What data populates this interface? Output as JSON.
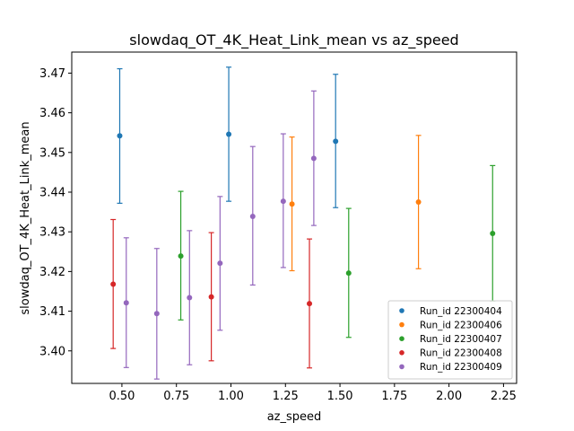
{
  "chart_data": {
    "type": "scatter",
    "title": "slowdaq_OT_4K_Heat_Link_mean vs az_speed",
    "xlabel": "az_speed",
    "ylabel": "slowdaq_OT_4K_Heat_Link_mean",
    "xlim": [
      0.27,
      2.31
    ],
    "ylim": [
      3.3918,
      3.4753
    ],
    "xticks": [
      0.5,
      0.75,
      1.0,
      1.25,
      1.5,
      1.75,
      2.0,
      2.25
    ],
    "xtick_labels": [
      "0.50",
      "0.75",
      "1.00",
      "1.25",
      "1.50",
      "1.75",
      "2.00",
      "2.25"
    ],
    "yticks": [
      3.4,
      3.41,
      3.42,
      3.43,
      3.44,
      3.45,
      3.46,
      3.47
    ],
    "ytick_labels": [
      "3.40",
      "3.41",
      "3.42",
      "3.43",
      "3.44",
      "3.45",
      "3.46",
      "3.47"
    ],
    "grid": false,
    "error_bars": true,
    "legend_position": "lower-right",
    "series": [
      {
        "name": "Run_id 22300404",
        "color": "#1f77b4",
        "points": [
          {
            "x": 0.49,
            "y": 3.4542,
            "ylow": 3.4372,
            "yhigh": 3.4711
          },
          {
            "x": 0.99,
            "y": 3.4546,
            "ylow": 3.4377,
            "yhigh": 3.4715
          },
          {
            "x": 1.48,
            "y": 3.4528,
            "ylow": 3.4361,
            "yhigh": 3.4697
          }
        ]
      },
      {
        "name": "Run_id 22300406",
        "color": "#ff7f0e",
        "points": [
          {
            "x": 1.28,
            "y": 3.437,
            "ylow": 3.4202,
            "yhigh": 3.4539
          },
          {
            "x": 1.86,
            "y": 3.4375,
            "ylow": 3.4207,
            "yhigh": 3.4543
          }
        ]
      },
      {
        "name": "Run_id 22300407",
        "color": "#2ca02c",
        "points": [
          {
            "x": 0.77,
            "y": 3.4239,
            "ylow": 3.4078,
            "yhigh": 3.4402
          },
          {
            "x": 1.54,
            "y": 3.4196,
            "ylow": 3.4034,
            "yhigh": 3.4359
          },
          {
            "x": 2.2,
            "y": 3.4296,
            "ylow": 3.4125,
            "yhigh": 3.4467
          }
        ]
      },
      {
        "name": "Run_id 22300408",
        "color": "#d62728",
        "points": [
          {
            "x": 0.46,
            "y": 3.4168,
            "ylow": 3.4006,
            "yhigh": 3.4331
          },
          {
            "x": 0.91,
            "y": 3.4136,
            "ylow": 3.3975,
            "yhigh": 3.4298
          },
          {
            "x": 1.36,
            "y": 3.4119,
            "ylow": 3.3957,
            "yhigh": 3.4282
          }
        ]
      },
      {
        "name": "Run_id 22300409",
        "color": "#9467bd",
        "points": [
          {
            "x": 0.52,
            "y": 3.4121,
            "ylow": 3.3958,
            "yhigh": 3.4285
          },
          {
            "x": 0.66,
            "y": 3.4094,
            "ylow": 3.3929,
            "yhigh": 3.4258
          },
          {
            "x": 0.81,
            "y": 3.4134,
            "ylow": 3.3965,
            "yhigh": 3.4303
          },
          {
            "x": 0.95,
            "y": 3.4221,
            "ylow": 3.4052,
            "yhigh": 3.4389
          },
          {
            "x": 1.1,
            "y": 3.4339,
            "ylow": 3.4166,
            "yhigh": 3.4515
          },
          {
            "x": 1.24,
            "y": 3.4377,
            "ylow": 3.421,
            "yhigh": 3.4547
          },
          {
            "x": 1.38,
            "y": 3.4485,
            "ylow": 3.4316,
            "yhigh": 3.4655
          }
        ]
      }
    ]
  }
}
